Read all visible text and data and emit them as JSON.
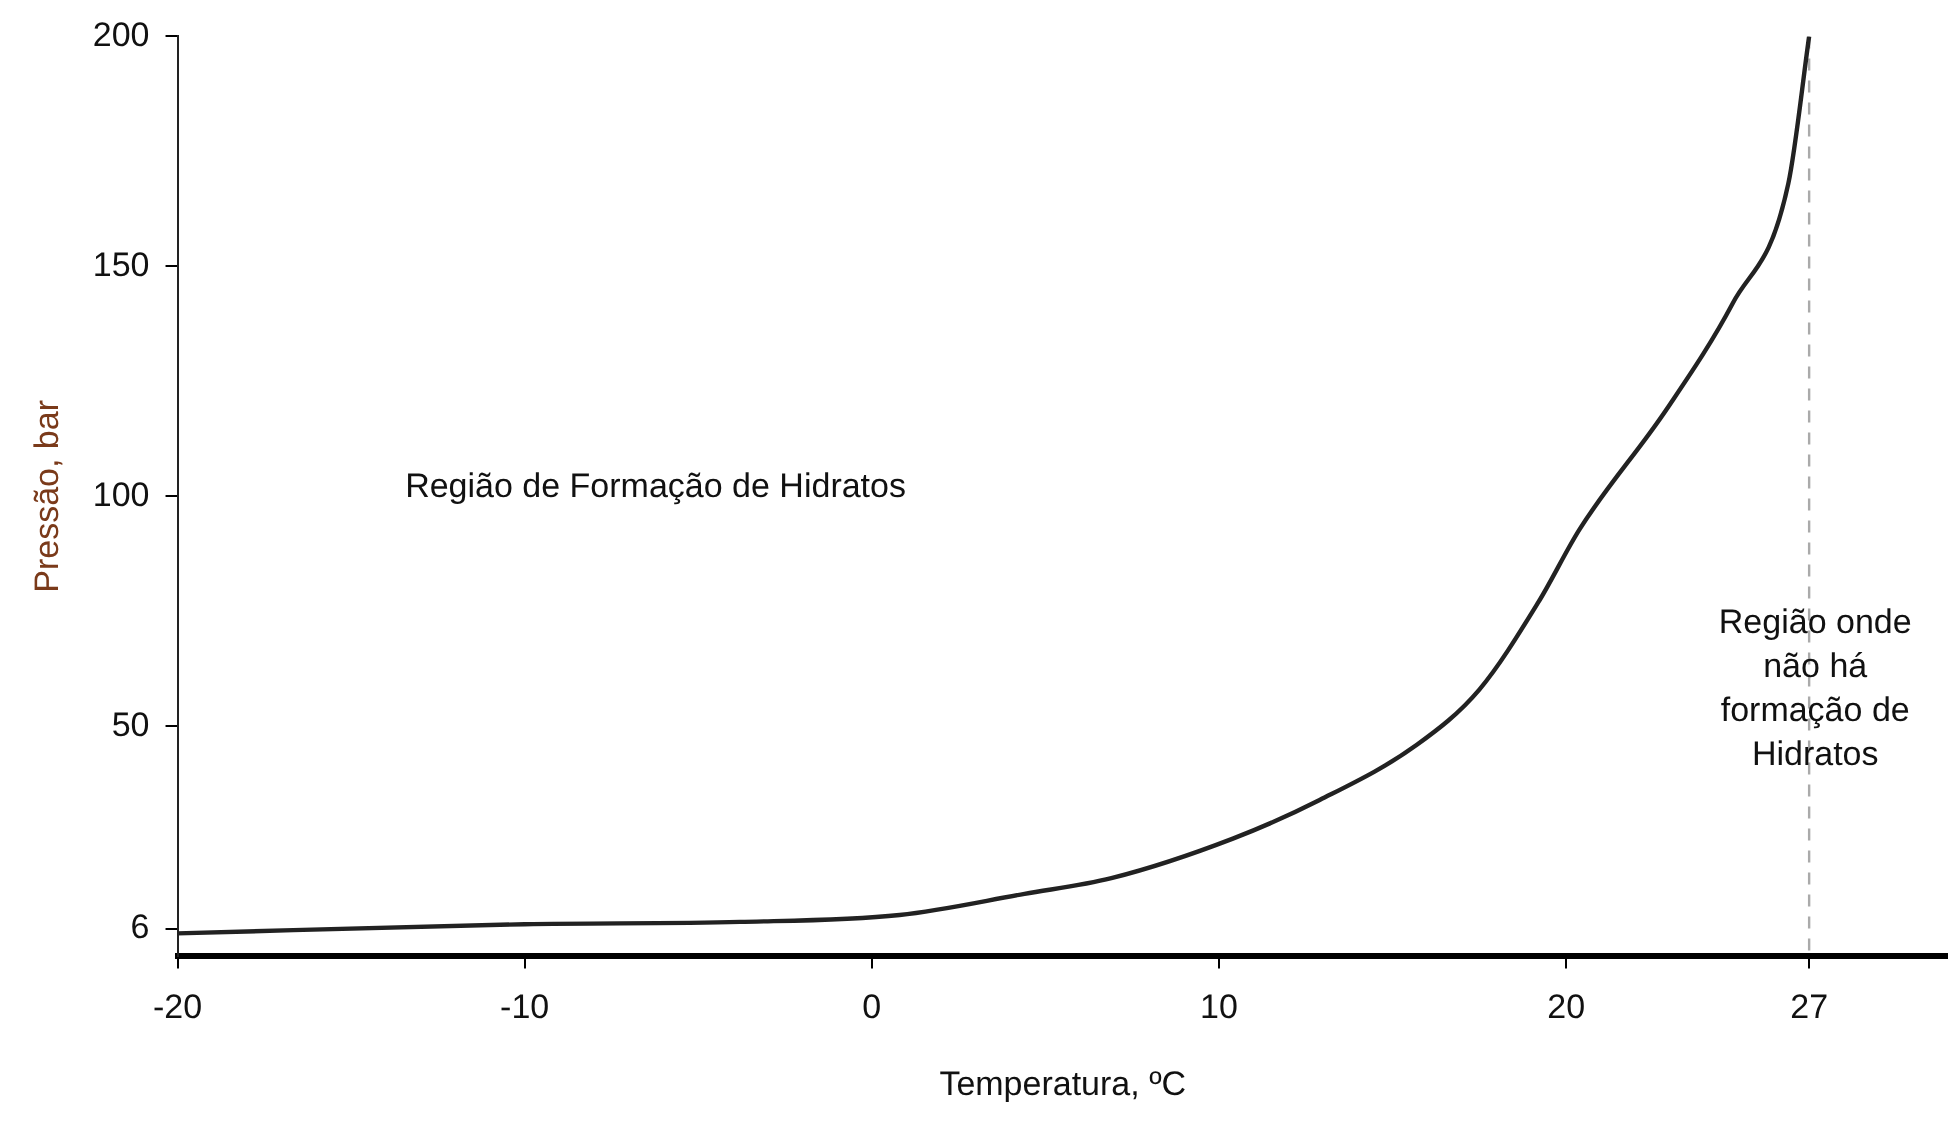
{
  "chart_data": {
    "type": "line",
    "xlabel": "Temperatura, ºC",
    "ylabel": "Pressão, bar",
    "x": [
      -20,
      -10,
      -3.8,
      0.8,
      4.4,
      6.9,
      10.4,
      12.9,
      15.7,
      17.5,
      19.2,
      20.4,
      22.9,
      24.8,
      26.4,
      27
    ],
    "series": [
      {
        "color": "#222222",
        "values": [
          5,
          7,
          7.5,
          9,
          13.6,
          17,
          25.6,
          34,
          46,
          58,
          77,
          93,
          119,
          142,
          168,
          200
        ]
      }
    ],
    "xlim": [
      -20,
      31
    ],
    "xticks": [
      -20,
      -10,
      0,
      10,
      20,
      27
    ],
    "ylim": [
      0,
      200
    ],
    "yticks": [
      6,
      50,
      100,
      150,
      200
    ],
    "ref_lines": [
      {
        "axis": "x",
        "value": 27,
        "color": "#aaaaaa",
        "line_style": "dashed"
      }
    ],
    "annotations": [
      "Região de Formação de Hidratos",
      "Região onde não há formação de Hidratos"
    ],
    "grid": false,
    "legend": false,
    "marker": "none",
    "line_style": "solid"
  }
}
